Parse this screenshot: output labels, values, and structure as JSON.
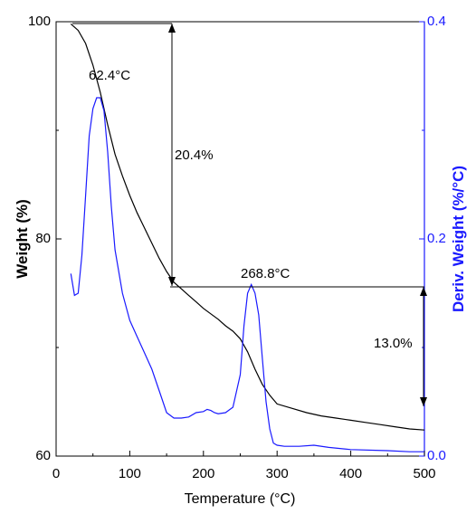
{
  "chart_data": {
    "type": "line",
    "title": "",
    "xlabel": "Temperature (°C)",
    "ylabel_left": "Weight (%)",
    "ylabel_right": "Deriv. Weight (%/°C)",
    "xlim": [
      0,
      500
    ],
    "ylim_left": [
      60,
      100
    ],
    "ylim_right": [
      0.0,
      0.4
    ],
    "x_ticks": [
      "0",
      "100",
      "200",
      "300",
      "400",
      "500"
    ],
    "y_left_ticks": [
      "60",
      "80",
      "100"
    ],
    "y_right_ticks": [
      "0.0",
      "0.2",
      "0.4"
    ],
    "grid": false,
    "series": [
      {
        "axis": "left",
        "color": "#000000",
        "x": [
          20,
          30,
          40,
          50,
          60,
          70,
          80,
          90,
          100,
          110,
          120,
          130,
          140,
          150,
          160,
          170,
          180,
          190,
          200,
          210,
          220,
          230,
          240,
          250,
          260,
          270,
          280,
          290,
          300,
          320,
          340,
          360,
          380,
          400,
          420,
          440,
          460,
          480,
          500
        ],
        "y": [
          99.8,
          99.2,
          98.0,
          96.0,
          93.5,
          90.5,
          87.8,
          85.8,
          84.0,
          82.4,
          81.0,
          79.6,
          78.2,
          77.0,
          76.0,
          75.4,
          74.8,
          74.2,
          73.6,
          73.1,
          72.6,
          72.0,
          71.5,
          70.8,
          69.6,
          68.0,
          66.6,
          65.6,
          64.8,
          64.4,
          64.0,
          63.7,
          63.5,
          63.3,
          63.1,
          62.9,
          62.7,
          62.5,
          62.4
        ]
      },
      {
        "axis": "right",
        "color": "#1a1aff",
        "x": [
          20,
          25,
          30,
          35,
          40,
          45,
          50,
          55,
          60,
          65,
          70,
          75,
          80,
          90,
          100,
          110,
          120,
          130,
          140,
          150,
          160,
          170,
          180,
          190,
          200,
          205,
          210,
          215,
          220,
          230,
          240,
          250,
          255,
          260,
          265,
          270,
          275,
          280,
          285,
          290,
          295,
          300,
          310,
          330,
          350,
          370,
          400,
          450,
          480,
          500
        ],
        "y": [
          0.168,
          0.148,
          0.15,
          0.185,
          0.24,
          0.295,
          0.32,
          0.33,
          0.33,
          0.318,
          0.28,
          0.23,
          0.19,
          0.15,
          0.125,
          0.11,
          0.095,
          0.08,
          0.06,
          0.04,
          0.035,
          0.035,
          0.036,
          0.04,
          0.041,
          0.043,
          0.042,
          0.04,
          0.039,
          0.04,
          0.045,
          0.075,
          0.12,
          0.15,
          0.158,
          0.15,
          0.13,
          0.09,
          0.05,
          0.025,
          0.012,
          0.01,
          0.009,
          0.009,
          0.01,
          0.008,
          0.006,
          0.005,
          0.004,
          0.004
        ]
      }
    ],
    "annotations": {
      "peak1": "62.4°C",
      "peak2": "268.8°C",
      "loss1": "20.4%",
      "loss2": "13.0%"
    }
  }
}
